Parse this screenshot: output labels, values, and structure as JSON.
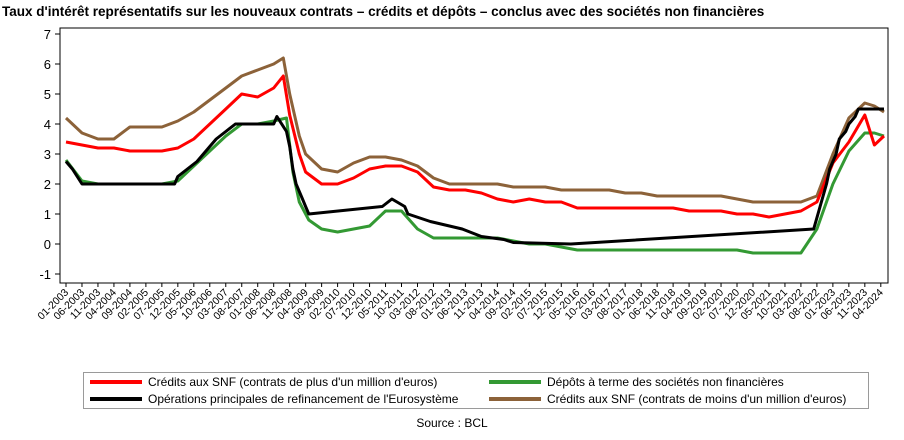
{
  "colors": {
    "credits_large": "#ff0000",
    "deposits": "#339933",
    "refinancing": "#000000",
    "credits_small": "#8c6239"
  },
  "source": "Source : BCL",
  "chart_data": {
    "type": "line",
    "title": "Taux d'intérêt représentatifs sur les nouveaux contrats – crédits et dépôts – conclus avec des sociétés non financières",
    "xlabel": "",
    "ylabel": "",
    "ylim": [
      -1.3,
      7.2
    ],
    "yticks": [
      "-1",
      "0",
      "1",
      "2",
      "3",
      "4",
      "5",
      "6",
      "7"
    ],
    "grid": false,
    "legend_position": "bottom",
    "x_tick_labels": [
      "01-2003",
      "06-2003",
      "11-2003",
      "04-2004",
      "09-2004",
      "02-2005",
      "07-2005",
      "12-2005",
      "05-2006",
      "10-2006",
      "03-2007",
      "08-2007",
      "01-2008",
      "06-2008",
      "11-2008",
      "04-2009",
      "09-2009",
      "02-2010",
      "07-2010",
      "12-2010",
      "05-2011",
      "10-2011",
      "03-2012",
      "08-2012",
      "01-2013",
      "06-2013",
      "11-2013",
      "04-2014",
      "09-2014",
      "02-2015",
      "07-2015",
      "12-2015",
      "05-2016",
      "10-2016",
      "03-2017",
      "08-2017",
      "01-2018",
      "06-2018",
      "11-2018",
      "04-2019",
      "09-2019",
      "02-2020",
      "07-2020",
      "12-2020",
      "05-2021",
      "10-2021",
      "03-2022",
      "08-2022",
      "01-2023",
      "06-2023",
      "11-2023",
      "04-2024"
    ],
    "x_start": "2003-01",
    "x_end": "2024-05",
    "series": [
      {
        "name": "Crédits aux SNF (contrats de plus d'un million d'euros)",
        "color_key": "credits_large",
        "points": [
          [
            "2003-01",
            3.4
          ],
          [
            "2003-06",
            3.3
          ],
          [
            "2003-11",
            3.2
          ],
          [
            "2004-04",
            3.2
          ],
          [
            "2004-09",
            3.1
          ],
          [
            "2005-02",
            3.1
          ],
          [
            "2005-07",
            3.1
          ],
          [
            "2005-12",
            3.2
          ],
          [
            "2006-05",
            3.5
          ],
          [
            "2006-10",
            4.0
          ],
          [
            "2007-03",
            4.5
          ],
          [
            "2007-08",
            5.0
          ],
          [
            "2008-01",
            4.9
          ],
          [
            "2008-06",
            5.2
          ],
          [
            "2008-09",
            5.6
          ],
          [
            "2008-11",
            4.3
          ],
          [
            "2009-02",
            3.0
          ],
          [
            "2009-04",
            2.4
          ],
          [
            "2009-09",
            2.0
          ],
          [
            "2010-02",
            2.0
          ],
          [
            "2010-07",
            2.2
          ],
          [
            "2010-12",
            2.5
          ],
          [
            "2011-05",
            2.6
          ],
          [
            "2011-10",
            2.6
          ],
          [
            "2012-03",
            2.4
          ],
          [
            "2012-08",
            1.9
          ],
          [
            "2013-01",
            1.8
          ],
          [
            "2013-06",
            1.8
          ],
          [
            "2013-11",
            1.7
          ],
          [
            "2014-04",
            1.5
          ],
          [
            "2014-09",
            1.4
          ],
          [
            "2015-02",
            1.5
          ],
          [
            "2015-07",
            1.4
          ],
          [
            "2015-12",
            1.4
          ],
          [
            "2016-05",
            1.2
          ],
          [
            "2016-10",
            1.2
          ],
          [
            "2017-03",
            1.2
          ],
          [
            "2017-08",
            1.2
          ],
          [
            "2018-01",
            1.2
          ],
          [
            "2018-06",
            1.2
          ],
          [
            "2018-11",
            1.2
          ],
          [
            "2019-04",
            1.1
          ],
          [
            "2019-09",
            1.1
          ],
          [
            "2020-02",
            1.1
          ],
          [
            "2020-07",
            1.0
          ],
          [
            "2020-12",
            1.0
          ],
          [
            "2021-05",
            0.9
          ],
          [
            "2021-10",
            1.0
          ],
          [
            "2022-03",
            1.1
          ],
          [
            "2022-08",
            1.4
          ],
          [
            "2023-01",
            2.7
          ],
          [
            "2023-06",
            3.4
          ],
          [
            "2023-11",
            4.3
          ],
          [
            "2024-02",
            3.3
          ],
          [
            "2024-05",
            3.6
          ]
        ]
      },
      {
        "name": "Dépôts à terme des sociétés non financières",
        "color_key": "deposits",
        "points": [
          [
            "2003-01",
            2.8
          ],
          [
            "2003-06",
            2.1
          ],
          [
            "2003-11",
            2.0
          ],
          [
            "2004-04",
            2.0
          ],
          [
            "2004-09",
            2.0
          ],
          [
            "2005-02",
            2.0
          ],
          [
            "2005-07",
            2.0
          ],
          [
            "2005-12",
            2.1
          ],
          [
            "2006-05",
            2.6
          ],
          [
            "2006-10",
            3.1
          ],
          [
            "2007-03",
            3.6
          ],
          [
            "2007-08",
            4.0
          ],
          [
            "2008-01",
            4.0
          ],
          [
            "2008-06",
            4.1
          ],
          [
            "2008-10",
            4.2
          ],
          [
            "2008-12",
            2.4
          ],
          [
            "2009-02",
            1.4
          ],
          [
            "2009-05",
            0.8
          ],
          [
            "2009-09",
            0.5
          ],
          [
            "2010-02",
            0.4
          ],
          [
            "2010-07",
            0.5
          ],
          [
            "2010-12",
            0.6
          ],
          [
            "2011-05",
            1.1
          ],
          [
            "2011-10",
            1.1
          ],
          [
            "2012-03",
            0.5
          ],
          [
            "2012-08",
            0.2
          ],
          [
            "2013-01",
            0.2
          ],
          [
            "2013-06",
            0.2
          ],
          [
            "2013-11",
            0.2
          ],
          [
            "2014-04",
            0.2
          ],
          [
            "2014-09",
            0.1
          ],
          [
            "2015-02",
            0.0
          ],
          [
            "2015-07",
            0.0
          ],
          [
            "2015-12",
            -0.1
          ],
          [
            "2016-05",
            -0.2
          ],
          [
            "2016-10",
            -0.2
          ],
          [
            "2017-03",
            -0.2
          ],
          [
            "2017-08",
            -0.2
          ],
          [
            "2018-01",
            -0.2
          ],
          [
            "2018-06",
            -0.2
          ],
          [
            "2018-11",
            -0.2
          ],
          [
            "2019-04",
            -0.2
          ],
          [
            "2019-09",
            -0.2
          ],
          [
            "2020-02",
            -0.2
          ],
          [
            "2020-07",
            -0.2
          ],
          [
            "2020-12",
            -0.3
          ],
          [
            "2021-05",
            -0.3
          ],
          [
            "2021-10",
            -0.3
          ],
          [
            "2022-03",
            -0.3
          ],
          [
            "2022-08",
            0.5
          ],
          [
            "2023-01",
            2.0
          ],
          [
            "2023-06",
            3.1
          ],
          [
            "2023-11",
            3.7
          ],
          [
            "2024-02",
            3.7
          ],
          [
            "2024-05",
            3.6
          ]
        ]
      },
      {
        "name": "Opérations principales de refinancement de l'Eurosystème",
        "color_key": "refinancing",
        "points": [
          [
            "2003-01",
            2.75
          ],
          [
            "2003-03",
            2.5
          ],
          [
            "2003-06",
            2.0
          ],
          [
            "2005-11",
            2.0
          ],
          [
            "2005-12",
            2.25
          ],
          [
            "2006-03",
            2.5
          ],
          [
            "2006-06",
            2.75
          ],
          [
            "2006-08",
            3.0
          ],
          [
            "2006-10",
            3.25
          ],
          [
            "2006-12",
            3.5
          ],
          [
            "2007-03",
            3.75
          ],
          [
            "2007-06",
            4.0
          ],
          [
            "2008-06",
            4.0
          ],
          [
            "2008-07",
            4.25
          ],
          [
            "2008-10",
            3.75
          ],
          [
            "2008-11",
            3.25
          ],
          [
            "2008-12",
            2.5
          ],
          [
            "2009-01",
            2.0
          ],
          [
            "2009-03",
            1.5
          ],
          [
            "2009-04",
            1.25
          ],
          [
            "2009-05",
            1.0
          ],
          [
            "2011-04",
            1.25
          ],
          [
            "2011-07",
            1.5
          ],
          [
            "2011-11",
            1.25
          ],
          [
            "2011-12",
            1.0
          ],
          [
            "2012-07",
            0.75
          ],
          [
            "2013-05",
            0.5
          ],
          [
            "2013-11",
            0.25
          ],
          [
            "2014-06",
            0.15
          ],
          [
            "2014-09",
            0.05
          ],
          [
            "2016-03",
            0.0
          ],
          [
            "2022-07",
            0.5
          ],
          [
            "2022-09",
            1.25
          ],
          [
            "2022-11",
            2.0
          ],
          [
            "2022-12",
            2.5
          ],
          [
            "2023-02",
            3.0
          ],
          [
            "2023-03",
            3.5
          ],
          [
            "2023-05",
            3.75
          ],
          [
            "2023-06",
            4.0
          ],
          [
            "2023-08",
            4.25
          ],
          [
            "2023-09",
            4.5
          ],
          [
            "2024-05",
            4.5
          ]
        ]
      },
      {
        "name": "Crédits aux SNF (contrats de moins d'un million d'euros)",
        "color_key": "credits_small",
        "points": [
          [
            "2003-01",
            4.2
          ],
          [
            "2003-06",
            3.7
          ],
          [
            "2003-11",
            3.5
          ],
          [
            "2004-04",
            3.5
          ],
          [
            "2004-09",
            3.9
          ],
          [
            "2005-02",
            3.9
          ],
          [
            "2005-07",
            3.9
          ],
          [
            "2005-12",
            4.1
          ],
          [
            "2006-05",
            4.4
          ],
          [
            "2006-10",
            4.8
          ],
          [
            "2007-03",
            5.2
          ],
          [
            "2007-08",
            5.6
          ],
          [
            "2008-01",
            5.8
          ],
          [
            "2008-06",
            6.0
          ],
          [
            "2008-09",
            6.2
          ],
          [
            "2008-11",
            5.0
          ],
          [
            "2009-02",
            3.6
          ],
          [
            "2009-04",
            3.0
          ],
          [
            "2009-09",
            2.5
          ],
          [
            "2010-02",
            2.4
          ],
          [
            "2010-07",
            2.7
          ],
          [
            "2010-12",
            2.9
          ],
          [
            "2011-05",
            2.9
          ],
          [
            "2011-10",
            2.8
          ],
          [
            "2012-03",
            2.6
          ],
          [
            "2012-08",
            2.2
          ],
          [
            "2013-01",
            2.0
          ],
          [
            "2013-06",
            2.0
          ],
          [
            "2013-11",
            2.0
          ],
          [
            "2014-04",
            2.0
          ],
          [
            "2014-09",
            1.9
          ],
          [
            "2015-02",
            1.9
          ],
          [
            "2015-07",
            1.9
          ],
          [
            "2015-12",
            1.8
          ],
          [
            "2016-05",
            1.8
          ],
          [
            "2016-10",
            1.8
          ],
          [
            "2017-03",
            1.8
          ],
          [
            "2017-08",
            1.7
          ],
          [
            "2018-01",
            1.7
          ],
          [
            "2018-06",
            1.6
          ],
          [
            "2018-11",
            1.6
          ],
          [
            "2019-04",
            1.6
          ],
          [
            "2019-09",
            1.6
          ],
          [
            "2020-02",
            1.6
          ],
          [
            "2020-07",
            1.5
          ],
          [
            "2020-12",
            1.4
          ],
          [
            "2021-05",
            1.4
          ],
          [
            "2021-10",
            1.4
          ],
          [
            "2022-03",
            1.4
          ],
          [
            "2022-08",
            1.6
          ],
          [
            "2023-01",
            3.0
          ],
          [
            "2023-06",
            4.2
          ],
          [
            "2023-11",
            4.7
          ],
          [
            "2024-02",
            4.6
          ],
          [
            "2024-05",
            4.4
          ]
        ]
      }
    ],
    "legend_layout": [
      {
        "series": 0,
        "row": 0,
        "col": 0
      },
      {
        "series": 1,
        "row": 0,
        "col": 1
      },
      {
        "series": 2,
        "row": 1,
        "col": 0
      },
      {
        "series": 3,
        "row": 1,
        "col": 1
      }
    ]
  }
}
